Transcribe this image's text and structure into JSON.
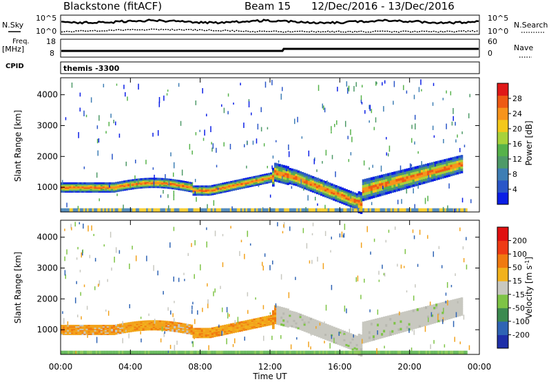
{
  "header": {
    "title": "Blackstone (fitACF)",
    "beam": "Beam 15",
    "date_range": "12/Dec/2016 - 13/Dec/2016"
  },
  "summary_panels": {
    "nsky_label": "N.Sky",
    "nsky_ticks": [
      "10^5",
      "10^0"
    ],
    "nsearch_label": "N.Search",
    "nsearch_ticks": [
      "10^5",
      "10^0"
    ],
    "freq_label": "Freq.",
    "freq_unit": "[MHz]",
    "freq_ticks": [
      "18",
      "8"
    ],
    "nave_label": "Nave",
    "nave_ticks": [
      "60",
      "0"
    ],
    "cpid_label": "CPID",
    "cpid_value": "themis -3300"
  },
  "chart_data": [
    {
      "type": "heatmap",
      "name": "power-panel",
      "ylabel": "Slant Range [km]",
      "xlabel": "",
      "ylim": [
        200,
        4550
      ],
      "yticks": [
        "1000",
        "2000",
        "3000",
        "4000"
      ],
      "colorbar_label": "Power [dB]",
      "colorbar_ticks": [
        "4",
        "8",
        "12",
        "16",
        "20",
        "24",
        "28"
      ],
      "colorbar_colors": [
        "#0a1ee6",
        "#2a56c8",
        "#3e7eb4",
        "#4e9a68",
        "#56b24a",
        "#a8d23a",
        "#f4c81a",
        "#f7941c",
        "#ee5a14",
        "#e01818"
      ]
    },
    {
      "type": "heatmap",
      "name": "velocity-panel",
      "ylabel": "Slant Range [km]",
      "xlabel": "Time UT",
      "ylim": [
        200,
        4550
      ],
      "yticks": [
        "1000",
        "2000",
        "3000",
        "4000"
      ],
      "xticks": [
        "00:00",
        "04:00",
        "08:00",
        "12:00",
        "16:00",
        "20:00",
        "00:00"
      ],
      "colorbar_label": "Velocity [m s-1]",
      "colorbar_ticks": [
        "200",
        "100",
        "50",
        "15",
        "-15",
        "-50",
        "-100",
        "-200"
      ],
      "colorbar_colors": [
        "#1f2fa8",
        "#2f64b4",
        "#3c8a50",
        "#7ec446",
        "#c8c8c0",
        "#f2b21c",
        "#f07a10",
        "#ee3a14",
        "#e01010"
      ]
    }
  ]
}
